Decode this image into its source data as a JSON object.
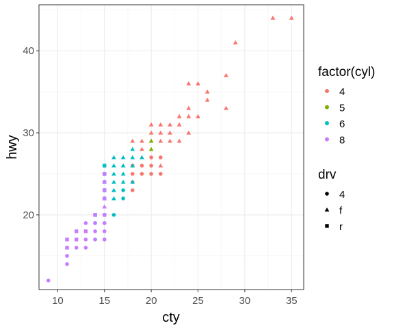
{
  "chart_data": {
    "type": "scatter",
    "xlabel": "cty",
    "ylabel": "hwy",
    "xlim": [
      8,
      36.3
    ],
    "ylim": [
      10.9,
      45.6
    ],
    "x_ticks": [
      10,
      15,
      20,
      25,
      30,
      35
    ],
    "x_tick_labels": [
      "10",
      "15",
      "20",
      "25",
      "30",
      "35"
    ],
    "y_ticks": [
      20,
      30,
      40
    ],
    "y_tick_labels": [
      "20",
      "30",
      "40"
    ],
    "grid": true,
    "legend_placement": "right",
    "color_legend": {
      "title": "factor(cyl)",
      "entries": [
        {
          "label": "4",
          "color": "#f8766d"
        },
        {
          "label": "5",
          "color": "#7cae00"
        },
        {
          "label": "6",
          "color": "#00bfc4"
        },
        {
          "label": "8",
          "color": "#c77cff"
        }
      ]
    },
    "shape_legend": {
      "title": "drv",
      "entries": [
        {
          "label": "4",
          "shape": "circle"
        },
        {
          "label": "f",
          "shape": "triangle"
        },
        {
          "label": "r",
          "shape": "square"
        }
      ]
    },
    "points": [
      {
        "x": 35,
        "y": 44,
        "cyl": "4",
        "drv": "f"
      },
      {
        "x": 33,
        "y": 44,
        "cyl": "4",
        "drv": "f"
      },
      {
        "x": 29,
        "y": 41,
        "cyl": "4",
        "drv": "f"
      },
      {
        "x": 28,
        "y": 37,
        "cyl": "4",
        "drv": "f"
      },
      {
        "x": 28,
        "y": 33,
        "cyl": "4",
        "drv": "f"
      },
      {
        "x": 26,
        "y": 35,
        "cyl": "4",
        "drv": "f"
      },
      {
        "x": 26,
        "y": 34,
        "cyl": "4",
        "drv": "f"
      },
      {
        "x": 25,
        "y": 36,
        "cyl": "4",
        "drv": "f"
      },
      {
        "x": 24,
        "y": 36,
        "cyl": "4",
        "drv": "f"
      },
      {
        "x": 24,
        "y": 33,
        "cyl": "4",
        "drv": "f"
      },
      {
        "x": 24,
        "y": 32,
        "cyl": "4",
        "drv": "f"
      },
      {
        "x": 24,
        "y": 30,
        "cyl": "4",
        "drv": "f"
      },
      {
        "x": 25,
        "y": 32,
        "cyl": "4",
        "drv": "f"
      },
      {
        "x": 23,
        "y": 32,
        "cyl": "4",
        "drv": "f"
      },
      {
        "x": 23,
        "y": 31,
        "cyl": "4",
        "drv": "f"
      },
      {
        "x": 23,
        "y": 29,
        "cyl": "4",
        "drv": "f"
      },
      {
        "x": 22,
        "y": 31,
        "cyl": "4",
        "drv": "f"
      },
      {
        "x": 22,
        "y": 30,
        "cyl": "4",
        "drv": "f"
      },
      {
        "x": 22,
        "y": 29,
        "cyl": "4",
        "drv": "f"
      },
      {
        "x": 21,
        "y": 31,
        "cyl": "4",
        "drv": "f"
      },
      {
        "x": 21,
        "y": 30,
        "cyl": "4",
        "drv": "f"
      },
      {
        "x": 21,
        "y": 29,
        "cyl": "4",
        "drv": "f"
      },
      {
        "x": 20,
        "y": 31,
        "cyl": "4",
        "drv": "f"
      },
      {
        "x": 20,
        "y": 30,
        "cyl": "4",
        "drv": "f"
      },
      {
        "x": 20,
        "y": 29,
        "cyl": "4",
        "drv": "f"
      },
      {
        "x": 21,
        "y": 27,
        "cyl": "4",
        "drv": "4"
      },
      {
        "x": 21,
        "y": 26,
        "cyl": "4",
        "drv": "f"
      },
      {
        "x": 21,
        "y": 25,
        "cyl": "4",
        "drv": "4"
      },
      {
        "x": 20,
        "y": 27,
        "cyl": "4",
        "drv": "4"
      },
      {
        "x": 20,
        "y": 26,
        "cyl": "4",
        "drv": "4"
      },
      {
        "x": 20,
        "y": 25,
        "cyl": "4",
        "drv": "4"
      },
      {
        "x": 19,
        "y": 29,
        "cyl": "4",
        "drv": "f"
      },
      {
        "x": 19,
        "y": 28,
        "cyl": "4",
        "drv": "f"
      },
      {
        "x": 19,
        "y": 27,
        "cyl": "4",
        "drv": "f"
      },
      {
        "x": 19,
        "y": 26,
        "cyl": "4",
        "drv": "4"
      },
      {
        "x": 19,
        "y": 25,
        "cyl": "4",
        "drv": "4"
      },
      {
        "x": 18,
        "y": 29,
        "cyl": "4",
        "drv": "f"
      },
      {
        "x": 18,
        "y": 26,
        "cyl": "4",
        "drv": "4"
      },
      {
        "x": 18,
        "y": 25,
        "cyl": "4",
        "drv": "4"
      },
      {
        "x": 18,
        "y": 23,
        "cyl": "4",
        "drv": "4"
      },
      {
        "x": 18,
        "y": 24,
        "cyl": "4",
        "drv": "4"
      },
      {
        "x": 17,
        "y": 26,
        "cyl": "4",
        "drv": "f"
      },
      {
        "x": 20,
        "y": 29,
        "cyl": "5",
        "drv": "f"
      },
      {
        "x": 20,
        "y": 28,
        "cyl": "5",
        "drv": "f"
      },
      {
        "x": 19,
        "y": 27,
        "cyl": "6",
        "drv": "f"
      },
      {
        "x": 18,
        "y": 28,
        "cyl": "6",
        "drv": "f"
      },
      {
        "x": 18,
        "y": 27,
        "cyl": "6",
        "drv": "f"
      },
      {
        "x": 18,
        "y": 26,
        "cyl": "6",
        "drv": "f"
      },
      {
        "x": 18,
        "y": 24,
        "cyl": "6",
        "drv": "f"
      },
      {
        "x": 17,
        "y": 27,
        "cyl": "6",
        "drv": "f"
      },
      {
        "x": 17,
        "y": 26,
        "cyl": "6",
        "drv": "f"
      },
      {
        "x": 17,
        "y": 25,
        "cyl": "6",
        "drv": "f"
      },
      {
        "x": 17,
        "y": 24,
        "cyl": "6",
        "drv": "f"
      },
      {
        "x": 17,
        "y": 23,
        "cyl": "6",
        "drv": "4"
      },
      {
        "x": 17,
        "y": 22,
        "cyl": "6",
        "drv": "4"
      },
      {
        "x": 16,
        "y": 27,
        "cyl": "6",
        "drv": "f"
      },
      {
        "x": 16,
        "y": 26,
        "cyl": "6",
        "drv": "f"
      },
      {
        "x": 16,
        "y": 25,
        "cyl": "6",
        "drv": "f"
      },
      {
        "x": 16,
        "y": 24,
        "cyl": "6",
        "drv": "f"
      },
      {
        "x": 16,
        "y": 23,
        "cyl": "6",
        "drv": "f"
      },
      {
        "x": 16,
        "y": 22,
        "cyl": "6",
        "drv": "f"
      },
      {
        "x": 16,
        "y": 20,
        "cyl": "6",
        "drv": "4"
      },
      {
        "x": 15,
        "y": 26,
        "cyl": "6",
        "drv": "r"
      },
      {
        "x": 15,
        "y": 25,
        "cyl": "6",
        "drv": "r"
      },
      {
        "x": 15,
        "y": 24,
        "cyl": "6",
        "drv": "f"
      },
      {
        "x": 15,
        "y": 23,
        "cyl": "6",
        "drv": "r"
      },
      {
        "x": 15,
        "y": 22,
        "cyl": "6",
        "drv": "f"
      },
      {
        "x": 15,
        "y": 20,
        "cyl": "6",
        "drv": "4"
      },
      {
        "x": 15,
        "y": 19,
        "cyl": "6",
        "drv": "4"
      },
      {
        "x": 15,
        "y": 17,
        "cyl": "6",
        "drv": "4"
      },
      {
        "x": 14,
        "y": 20,
        "cyl": "6",
        "drv": "r"
      },
      {
        "x": 14,
        "y": 19,
        "cyl": "6",
        "drv": "4"
      },
      {
        "x": 14,
        "y": 17,
        "cyl": "6",
        "drv": "4"
      },
      {
        "x": 15,
        "y": 25,
        "cyl": "8",
        "drv": "r"
      },
      {
        "x": 15,
        "y": 24,
        "cyl": "8",
        "drv": "r"
      },
      {
        "x": 15,
        "y": 23,
        "cyl": "8",
        "drv": "r"
      },
      {
        "x": 15,
        "y": 22,
        "cyl": "8",
        "drv": "r"
      },
      {
        "x": 15,
        "y": 21,
        "cyl": "8",
        "drv": "f"
      },
      {
        "x": 15,
        "y": 20,
        "cyl": "8",
        "drv": "r"
      },
      {
        "x": 15,
        "y": 19,
        "cyl": "8",
        "drv": "4"
      },
      {
        "x": 15,
        "y": 18,
        "cyl": "8",
        "drv": "4"
      },
      {
        "x": 15,
        "y": 17,
        "cyl": "8",
        "drv": "4"
      },
      {
        "x": 14,
        "y": 20,
        "cyl": "8",
        "drv": "r"
      },
      {
        "x": 14,
        "y": 19,
        "cyl": "8",
        "drv": "4"
      },
      {
        "x": 14,
        "y": 18,
        "cyl": "8",
        "drv": "4"
      },
      {
        "x": 14,
        "y": 17,
        "cyl": "8",
        "drv": "4"
      },
      {
        "x": 13,
        "y": 19,
        "cyl": "8",
        "drv": "4"
      },
      {
        "x": 13,
        "y": 18,
        "cyl": "8",
        "drv": "r"
      },
      {
        "x": 13,
        "y": 17,
        "cyl": "8",
        "drv": "4"
      },
      {
        "x": 13,
        "y": 16,
        "cyl": "8",
        "drv": "4"
      },
      {
        "x": 12,
        "y": 18,
        "cyl": "8",
        "drv": "r"
      },
      {
        "x": 12,
        "y": 17,
        "cyl": "8",
        "drv": "r"
      },
      {
        "x": 12,
        "y": 16,
        "cyl": "8",
        "drv": "4"
      },
      {
        "x": 11,
        "y": 17,
        "cyl": "8",
        "drv": "r"
      },
      {
        "x": 11,
        "y": 16,
        "cyl": "8",
        "drv": "r"
      },
      {
        "x": 11,
        "y": 15,
        "cyl": "8",
        "drv": "4"
      },
      {
        "x": 11,
        "y": 14,
        "cyl": "8",
        "drv": "4"
      },
      {
        "x": 9,
        "y": 12,
        "cyl": "8",
        "drv": "4"
      }
    ]
  }
}
